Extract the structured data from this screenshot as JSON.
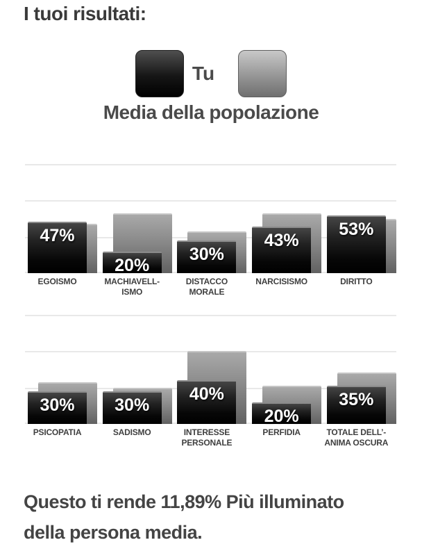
{
  "header": {
    "title": "I tuoi risultati:"
  },
  "legend": {
    "you": {
      "label": "Tu",
      "swatch_color_top": "#4f4f4f",
      "swatch_color_bottom": "#000000"
    },
    "population": {
      "label": "Media della popolazione",
      "swatch_color_top": "#c8c8c8",
      "swatch_color_bottom": "#6f6f6f"
    }
  },
  "chart_data": {
    "type": "bar",
    "unit": "%",
    "ylim": [
      0,
      100
    ],
    "gridlines_pct": [
      0,
      33.3,
      66.7,
      100
    ],
    "grid": true,
    "legend_position": "top-center",
    "series_names": [
      "Tu",
      "Media della popolazione"
    ],
    "series_colors": {
      "you": "#111111",
      "population": "#8a8a8a"
    },
    "value_label_format": "{value}%",
    "rows": [
      {
        "groups": [
          {
            "label_lines": [
              "EGOISMO"
            ],
            "you": 47,
            "population": 45
          },
          {
            "label_lines": [
              "MACHIAVELL-",
              "ISMO"
            ],
            "you": 20,
            "population": 55
          },
          {
            "label_lines": [
              "DISTACCO",
              "MORALE"
            ],
            "you": 30,
            "population": 38
          },
          {
            "label_lines": [
              "NARCISISMO"
            ],
            "you": 43,
            "population": 55
          },
          {
            "label_lines": [
              "DIRITTO"
            ],
            "you": 53,
            "population": 50
          }
        ]
      },
      {
        "groups": [
          {
            "label_lines": [
              "PSICOPATIA"
            ],
            "you": 30,
            "population": 38
          },
          {
            "label_lines": [
              "SADISMO"
            ],
            "you": 30,
            "population": 33
          },
          {
            "label_lines": [
              "INTERESSE",
              "PERSONALE"
            ],
            "you": 40,
            "population": 67
          },
          {
            "label_lines": [
              "PERFIDIA"
            ],
            "you": 20,
            "population": 35
          },
          {
            "label_lines": [
              "TOTALE DELL’-",
              "ANIMA OSCURA"
            ],
            "you": 35,
            "population": 47
          }
        ]
      }
    ]
  },
  "summary": {
    "lines": [
      "Questo ti rende 11,89% Più illuminato",
      "della persona media."
    ]
  }
}
